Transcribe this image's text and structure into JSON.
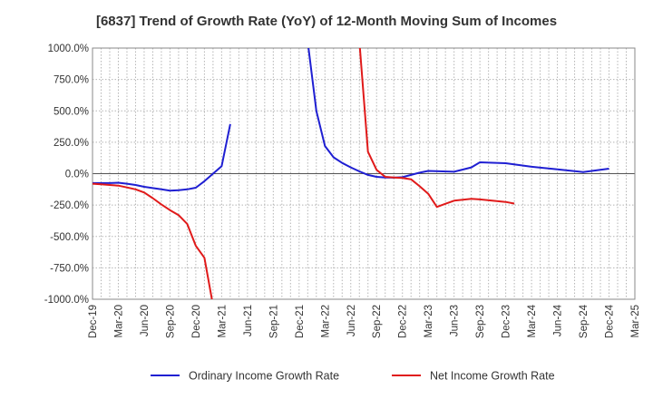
{
  "chart_data": {
    "type": "line",
    "title": "[6837]  Trend of Growth Rate (YoY) of 12-Month Moving Sum of Incomes",
    "xlabel": "",
    "ylabel": "",
    "ylim": [
      -1000,
      1000
    ],
    "y_ticks": [
      1000,
      750,
      500,
      250,
      0,
      -250,
      -500,
      -750,
      -1000
    ],
    "y_tick_labels": [
      "1000.0%",
      "750.0%",
      "500.0%",
      "250.0%",
      "0.0%",
      "-250.0%",
      "-500.0%",
      "-750.0%",
      "-1000.0%"
    ],
    "x_tick_labels": [
      "Dec-19",
      "Mar-20",
      "Jun-20",
      "Sep-20",
      "Dec-20",
      "Mar-21",
      "Jun-21",
      "Sep-21",
      "Dec-21",
      "Mar-22",
      "Jun-22",
      "Sep-22",
      "Dec-22",
      "Mar-23",
      "Jun-23",
      "Sep-23",
      "Dec-23",
      "Mar-24",
      "Jun-24",
      "Sep-24",
      "Dec-24",
      "Mar-25"
    ],
    "grid": true,
    "legend_position": "bottom",
    "series": [
      {
        "name": "Ordinary Income Growth Rate",
        "color": "#1f1fd2",
        "points": [
          [
            "Dec-19",
            -75
          ],
          [
            "Jan-20",
            -75
          ],
          [
            "Feb-20",
            -75
          ],
          [
            "Mar-20",
            -72
          ],
          [
            "Apr-20",
            -80
          ],
          [
            "May-20",
            -90
          ],
          [
            "Jun-20",
            -105
          ],
          [
            "Jul-20",
            -115
          ],
          [
            "Aug-20",
            -125
          ],
          [
            "Sep-20",
            -135
          ],
          [
            "Oct-20",
            -132
          ],
          [
            "Nov-20",
            -125
          ],
          [
            "Dec-20",
            -112
          ],
          [
            "Jan-21",
            -60
          ],
          [
            "Feb-21",
            0
          ],
          [
            "Mar-21",
            60
          ],
          [
            "Apr-21",
            395
          ],
          null,
          [
            "Jan-22",
            1050
          ],
          [
            "Feb-22",
            500
          ],
          [
            "Mar-22",
            220
          ],
          [
            "Apr-22",
            130
          ],
          [
            "May-22",
            85
          ],
          [
            "Jun-22",
            50
          ],
          [
            "Jul-22",
            18
          ],
          [
            "Aug-22",
            -10
          ],
          [
            "Sep-22",
            -25
          ],
          [
            "Oct-22",
            -30
          ],
          [
            "Nov-22",
            -32
          ],
          [
            "Dec-22",
            -28
          ],
          [
            "Jan-23",
            -10
          ],
          [
            "Feb-23",
            8
          ],
          [
            "Mar-23",
            22
          ],
          [
            "Jun-23",
            15
          ],
          [
            "Aug-23",
            50
          ],
          [
            "Sep-23",
            90
          ],
          [
            "Dec-23",
            83
          ],
          [
            "Mar-24",
            55
          ],
          [
            "Jun-24",
            35
          ],
          [
            "Sep-24",
            12
          ],
          [
            "Dec-24",
            40
          ]
        ]
      },
      {
        "name": "Net Income Growth Rate",
        "color": "#e01a1a",
        "points": [
          [
            "Dec-19",
            -80
          ],
          [
            "Jan-20",
            -85
          ],
          [
            "Feb-20",
            -90
          ],
          [
            "Mar-20",
            -95
          ],
          [
            "Apr-20",
            -110
          ],
          [
            "May-20",
            -125
          ],
          [
            "Jun-20",
            -150
          ],
          [
            "Jul-20",
            -195
          ],
          [
            "Aug-20",
            -245
          ],
          [
            "Sep-20",
            -290
          ],
          [
            "Oct-20",
            -330
          ],
          [
            "Nov-20",
            -400
          ],
          [
            "Dec-20",
            -575
          ],
          [
            "Jan-21",
            -670
          ],
          [
            "Feb-21",
            -1050
          ],
          null,
          [
            "Jul-22",
            1050
          ],
          [
            "Aug-22",
            175
          ],
          [
            "Sep-22",
            30
          ],
          [
            "Oct-22",
            -25
          ],
          [
            "Nov-22",
            -30
          ],
          [
            "Dec-22",
            -35
          ],
          [
            "Jan-23",
            -45
          ],
          [
            "Feb-23",
            -100
          ],
          [
            "Mar-23",
            -160
          ],
          [
            "Apr-23",
            -265
          ],
          [
            "May-23",
            -240
          ],
          [
            "Jun-23",
            -215
          ],
          [
            "Aug-23",
            -200
          ],
          [
            "Sep-23",
            -205
          ],
          [
            "Dec-23",
            -225
          ],
          [
            "Jan-24",
            -238
          ]
        ]
      }
    ]
  }
}
